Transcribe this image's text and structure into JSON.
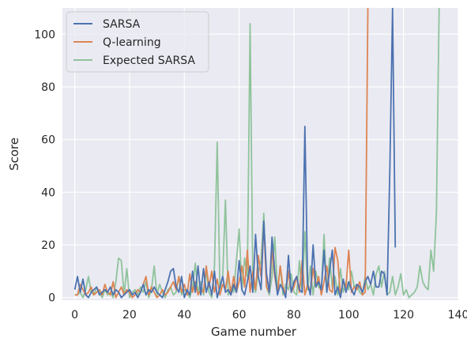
{
  "chart_data": {
    "type": "line",
    "title": "",
    "xlabel": "Game number",
    "ylabel": "Score",
    "xlim": [
      -4.5,
      140
    ],
    "ylim": [
      -1,
      110
    ],
    "x_ticks": [
      0,
      20,
      40,
      60,
      80,
      100,
      120,
      140
    ],
    "y_ticks": [
      0,
      20,
      40,
      60,
      80,
      100
    ],
    "grid": true,
    "legend": "top-left",
    "series": [
      {
        "name": "SARSA",
        "color": "#4c72b0",
        "x": [
          0,
          1,
          2,
          3,
          4,
          5,
          6,
          7,
          8,
          9,
          10,
          11,
          12,
          13,
          14,
          15,
          16,
          17,
          18,
          19,
          20,
          21,
          22,
          23,
          24,
          25,
          26,
          27,
          28,
          29,
          30,
          31,
          32,
          33,
          34,
          35,
          36,
          37,
          38,
          39,
          40,
          41,
          42,
          43,
          44,
          45,
          46,
          47,
          48,
          49,
          50,
          51,
          52,
          53,
          54,
          55,
          56,
          57,
          58,
          59,
          60,
          61,
          62,
          63,
          64,
          65,
          66,
          67,
          68,
          69,
          70,
          71,
          72,
          73,
          74,
          75,
          76,
          77,
          78,
          79,
          80,
          81,
          82,
          83,
          84,
          85,
          86,
          87,
          88,
          89,
          90,
          91,
          92,
          93,
          94,
          95,
          96,
          97,
          98,
          99,
          100,
          101,
          102,
          103,
          104,
          105,
          106,
          107,
          108,
          109,
          110,
          111,
          112,
          113,
          114,
          115,
          116,
          117
        ],
        "values": [
          3,
          8,
          2,
          7,
          1,
          0,
          2,
          3,
          4,
          1,
          2,
          3,
          2,
          4,
          1,
          3,
          2,
          0,
          1,
          2,
          3,
          1,
          2,
          0,
          2,
          5,
          1,
          3,
          2,
          4,
          2,
          1,
          0,
          3,
          6,
          10,
          11,
          4,
          2,
          8,
          0,
          3,
          1,
          10,
          2,
          12,
          1,
          11,
          2,
          6,
          1,
          10,
          0,
          4,
          8,
          2,
          3,
          1,
          5,
          2,
          14,
          3,
          1,
          6,
          12,
          2,
          24,
          8,
          3,
          29,
          9,
          2,
          23,
          10,
          1,
          5,
          3,
          0,
          16,
          2,
          6,
          8,
          3,
          2,
          65,
          5,
          1,
          20,
          4,
          6,
          3,
          18,
          2,
          10,
          18,
          1,
          4,
          0,
          7,
          2,
          6,
          3,
          1,
          5,
          4,
          2,
          6,
          8,
          5,
          10,
          4,
          4,
          10,
          9,
          1,
          48,
          110,
          19
        ]
      },
      {
        "name": "Q-learning",
        "color": "#dd8452",
        "x": [
          0,
          1,
          2,
          3,
          4,
          5,
          6,
          7,
          8,
          9,
          10,
          11,
          12,
          13,
          14,
          15,
          16,
          17,
          18,
          19,
          20,
          21,
          22,
          23,
          24,
          25,
          26,
          27,
          28,
          29,
          30,
          31,
          32,
          33,
          34,
          35,
          36,
          37,
          38,
          39,
          40,
          41,
          42,
          43,
          44,
          45,
          46,
          47,
          48,
          49,
          50,
          51,
          52,
          53,
          54,
          55,
          56,
          57,
          58,
          59,
          60,
          61,
          62,
          63,
          64,
          65,
          66,
          67,
          68,
          69,
          70,
          71,
          72,
          73,
          74,
          75,
          76,
          77,
          78,
          79,
          80,
          81,
          82,
          83,
          84,
          85,
          86,
          87,
          88,
          89,
          90,
          91,
          92,
          93,
          94,
          95,
          96,
          97,
          98,
          99,
          100,
          101,
          102,
          103,
          104,
          105,
          106,
          107
        ],
        "values": [
          1,
          1,
          5,
          3,
          1,
          2,
          4,
          1,
          2,
          3,
          1,
          5,
          2,
          1,
          6,
          0,
          2,
          4,
          1,
          3,
          2,
          0,
          1,
          3,
          2,
          5,
          8,
          1,
          4,
          2,
          0,
          1,
          3,
          1,
          2,
          4,
          6,
          3,
          8,
          2,
          5,
          1,
          9,
          2,
          6,
          1,
          3,
          2,
          12,
          4,
          10,
          2,
          7,
          1,
          5,
          3,
          10,
          1,
          8,
          2,
          6,
          12,
          4,
          18,
          2,
          10,
          3,
          16,
          8,
          28,
          4,
          2,
          18,
          8,
          2,
          12,
          4,
          1,
          10,
          2,
          4,
          8,
          2,
          14,
          1,
          5,
          2,
          11,
          4,
          8,
          1,
          6,
          12,
          3,
          2,
          19,
          14,
          1,
          6,
          4,
          18,
          2,
          4,
          3,
          6,
          1,
          2,
          110
        ]
      },
      {
        "name": "Expected SARSA",
        "color": "#8fc39b",
        "x": [
          0,
          1,
          2,
          3,
          4,
          5,
          6,
          7,
          8,
          9,
          10,
          11,
          12,
          13,
          14,
          15,
          16,
          17,
          18,
          19,
          20,
          21,
          22,
          23,
          24,
          25,
          26,
          27,
          28,
          29,
          30,
          31,
          32,
          33,
          34,
          35,
          36,
          37,
          38,
          39,
          40,
          41,
          42,
          43,
          44,
          45,
          46,
          47,
          48,
          49,
          50,
          51,
          52,
          53,
          54,
          55,
          56,
          57,
          58,
          59,
          60,
          61,
          62,
          63,
          64,
          65,
          66,
          67,
          68,
          69,
          70,
          71,
          72,
          73,
          74,
          75,
          76,
          77,
          78,
          79,
          80,
          81,
          82,
          83,
          84,
          85,
          86,
          87,
          88,
          89,
          90,
          91,
          92,
          93,
          94,
          95,
          96,
          97,
          98,
          99,
          100,
          101,
          102,
          103,
          104,
          105,
          106,
          107,
          108,
          109,
          110,
          111,
          112,
          113,
          114,
          115,
          116,
          117,
          118,
          119,
          120,
          121,
          122,
          123,
          124,
          125,
          126,
          127,
          128,
          129,
          130,
          131,
          132,
          133
        ],
        "values": [
          1,
          1,
          2,
          0,
          3,
          8,
          2,
          1,
          4,
          2,
          0,
          3,
          1,
          2,
          0,
          6,
          15,
          14,
          1,
          11,
          0,
          2,
          3,
          1,
          4,
          2,
          6,
          0,
          3,
          12,
          1,
          5,
          2,
          0,
          3,
          4,
          1,
          2,
          8,
          1,
          3,
          2,
          0,
          4,
          13,
          2,
          6,
          1,
          10,
          2,
          0,
          12,
          59,
          3,
          8,
          37,
          1,
          4,
          2,
          14,
          26,
          3,
          15,
          8,
          104,
          6,
          2,
          10,
          14,
          32,
          4,
          1,
          8,
          23,
          2,
          12,
          1,
          5,
          3,
          9,
          2,
          1,
          14,
          2,
          25,
          3,
          12,
          1,
          10,
          4,
          3,
          24,
          2,
          15,
          4,
          8,
          1,
          11,
          2,
          6,
          3,
          10,
          4,
          5,
          2,
          1,
          8,
          3,
          5,
          1,
          9,
          12,
          4,
          10,
          1,
          2,
          8,
          1,
          4,
          9,
          1,
          3,
          0,
          1,
          2,
          4,
          12,
          6,
          4,
          3,
          18,
          10,
          32,
          110
        ]
      }
    ]
  }
}
